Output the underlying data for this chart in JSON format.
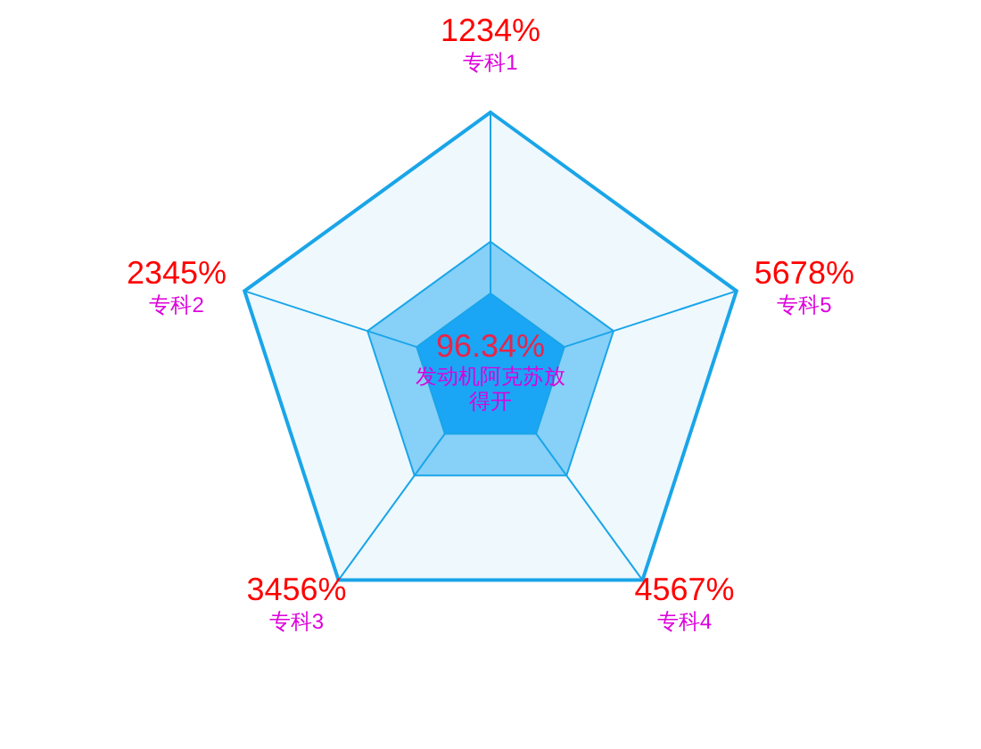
{
  "chart_data": {
    "type": "other",
    "title": "96.34%",
    "subtitle": "发动机阿克苏放得开",
    "categories": [
      "专科1",
      "专科5",
      "专科4",
      "专科3",
      "专科2"
    ],
    "values": [
      1234,
      5678,
      4567,
      3456,
      2345
    ],
    "value_labels": [
      "1234%",
      "5678%",
      "4567%",
      "3456%",
      "2345%"
    ]
  }
}
